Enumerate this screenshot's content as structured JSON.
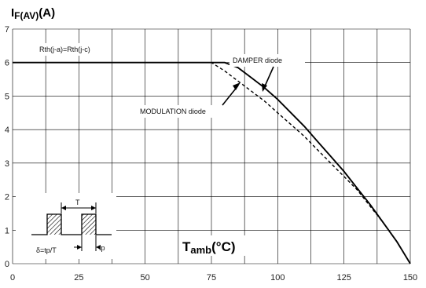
{
  "chart_data": {
    "type": "line",
    "title": "",
    "ylabel": "I",
    "ylabel_sub": "F(AV)",
    "ylabel_unit": "(A)",
    "xlabel": "T",
    "xlabel_sub": "amb",
    "xlabel_unit": "(°C)",
    "xlim": [
      0,
      150
    ],
    "ylim": [
      0,
      7
    ],
    "xticks": [
      "0",
      "25",
      "50",
      "75",
      "100",
      "125",
      "150"
    ],
    "yticks": [
      "0",
      "1",
      "2",
      "3",
      "4",
      "5",
      "6",
      "7"
    ],
    "grid": true,
    "series": [
      {
        "name": "DAMPER diode",
        "style": "solid",
        "x": [
          0,
          80,
          85,
          90,
          95,
          100,
          105,
          110,
          115,
          120,
          125,
          130,
          135,
          140,
          145,
          150
        ],
        "y": [
          6,
          6,
          5.85,
          5.55,
          5.25,
          4.9,
          4.5,
          4.1,
          3.65,
          3.2,
          2.75,
          2.25,
          1.75,
          1.2,
          0.65,
          0.0
        ]
      },
      {
        "name": "MODULATION diode",
        "style": "dashed",
        "x": [
          0,
          75,
          80,
          85,
          90,
          95,
          100,
          105,
          110,
          115,
          120,
          125,
          130,
          135,
          140,
          145,
          150
        ],
        "y": [
          6,
          6,
          5.75,
          5.45,
          5.15,
          4.85,
          4.5,
          4.15,
          3.8,
          3.4,
          3.0,
          2.6,
          2.2,
          1.7,
          1.2,
          0.65,
          0.0
        ]
      }
    ],
    "annotations": {
      "rth": "Rth(j-a)=Rth(j-c)",
      "delta": "δ=tp/T",
      "period": "T",
      "tp": "tp"
    },
    "colors": {
      "line": "#000000",
      "grid": "#000000",
      "background": "#ffffff"
    }
  }
}
